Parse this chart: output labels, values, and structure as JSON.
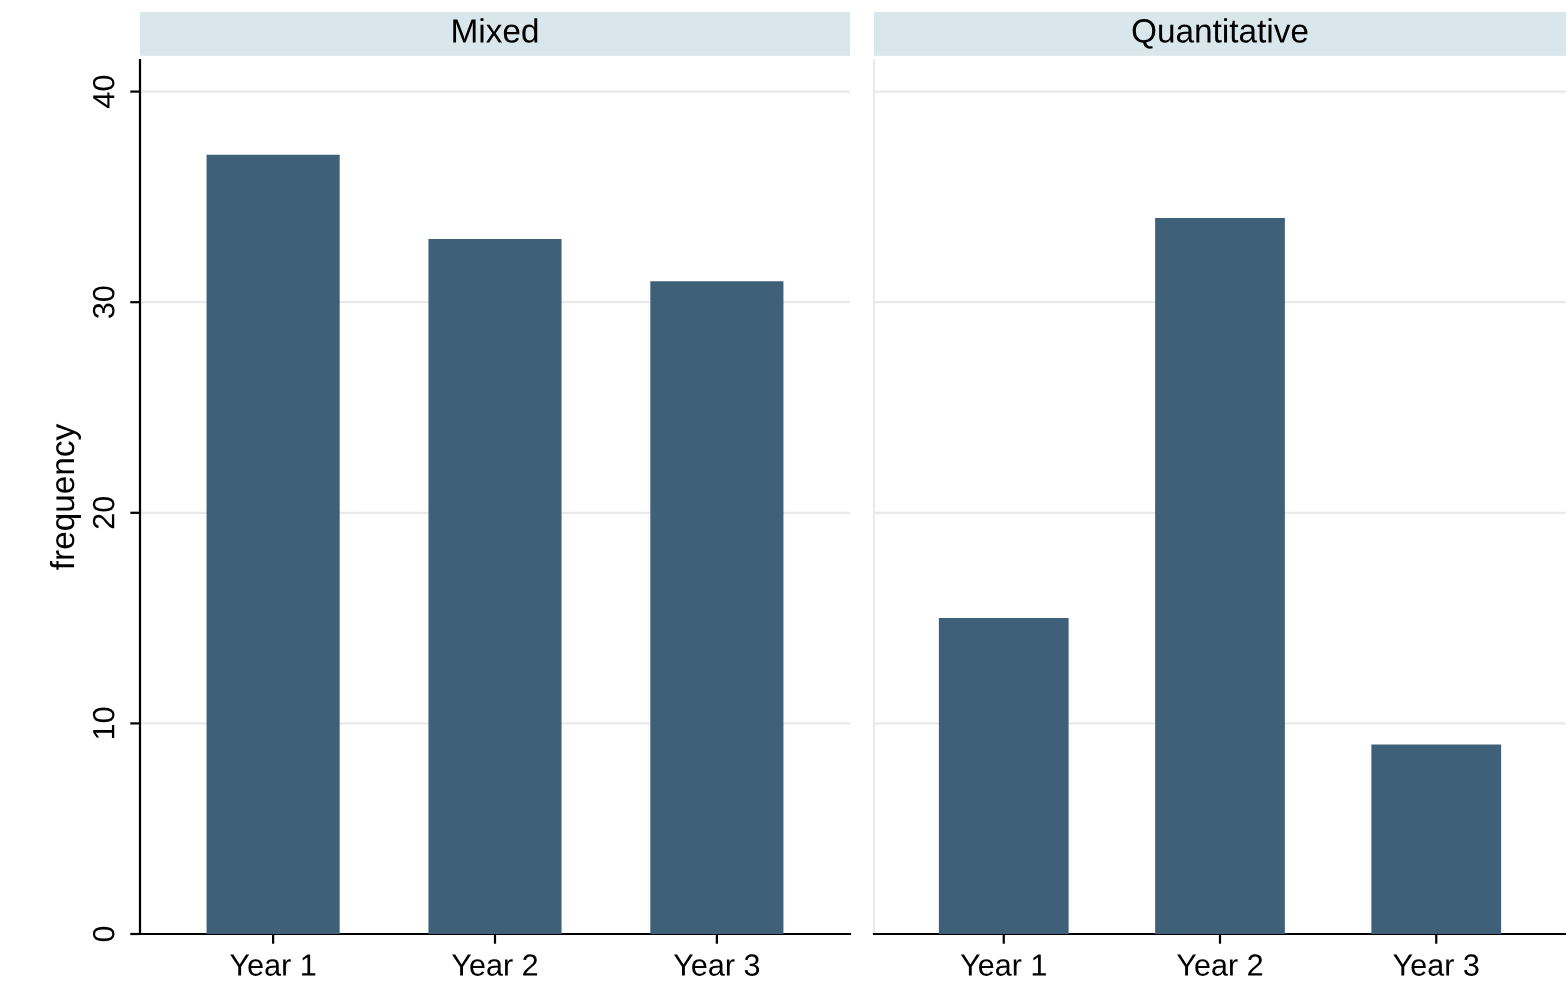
{
  "chart_data": [
    {
      "type": "bar",
      "title": "Mixed",
      "ylabel": "frequency",
      "categories": [
        "Year 1",
        "Year 2",
        "Year 3"
      ],
      "values": [
        37,
        33,
        31
      ],
      "color": "#3e6079",
      "ylim": [
        0,
        41.5
      ],
      "yticks": [
        0,
        10,
        20,
        30,
        40
      ],
      "grid": "y"
    },
    {
      "type": "bar",
      "title": "Quantitative",
      "categories": [
        "Year 1",
        "Year 2",
        "Year 3"
      ],
      "values": [
        15,
        34,
        9
      ],
      "color": "#3e6079",
      "ylim": [
        0,
        41.5
      ],
      "yticks": [
        0,
        10,
        20,
        30,
        40
      ],
      "grid": "y",
      "tick_labels": "x"
    }
  ]
}
